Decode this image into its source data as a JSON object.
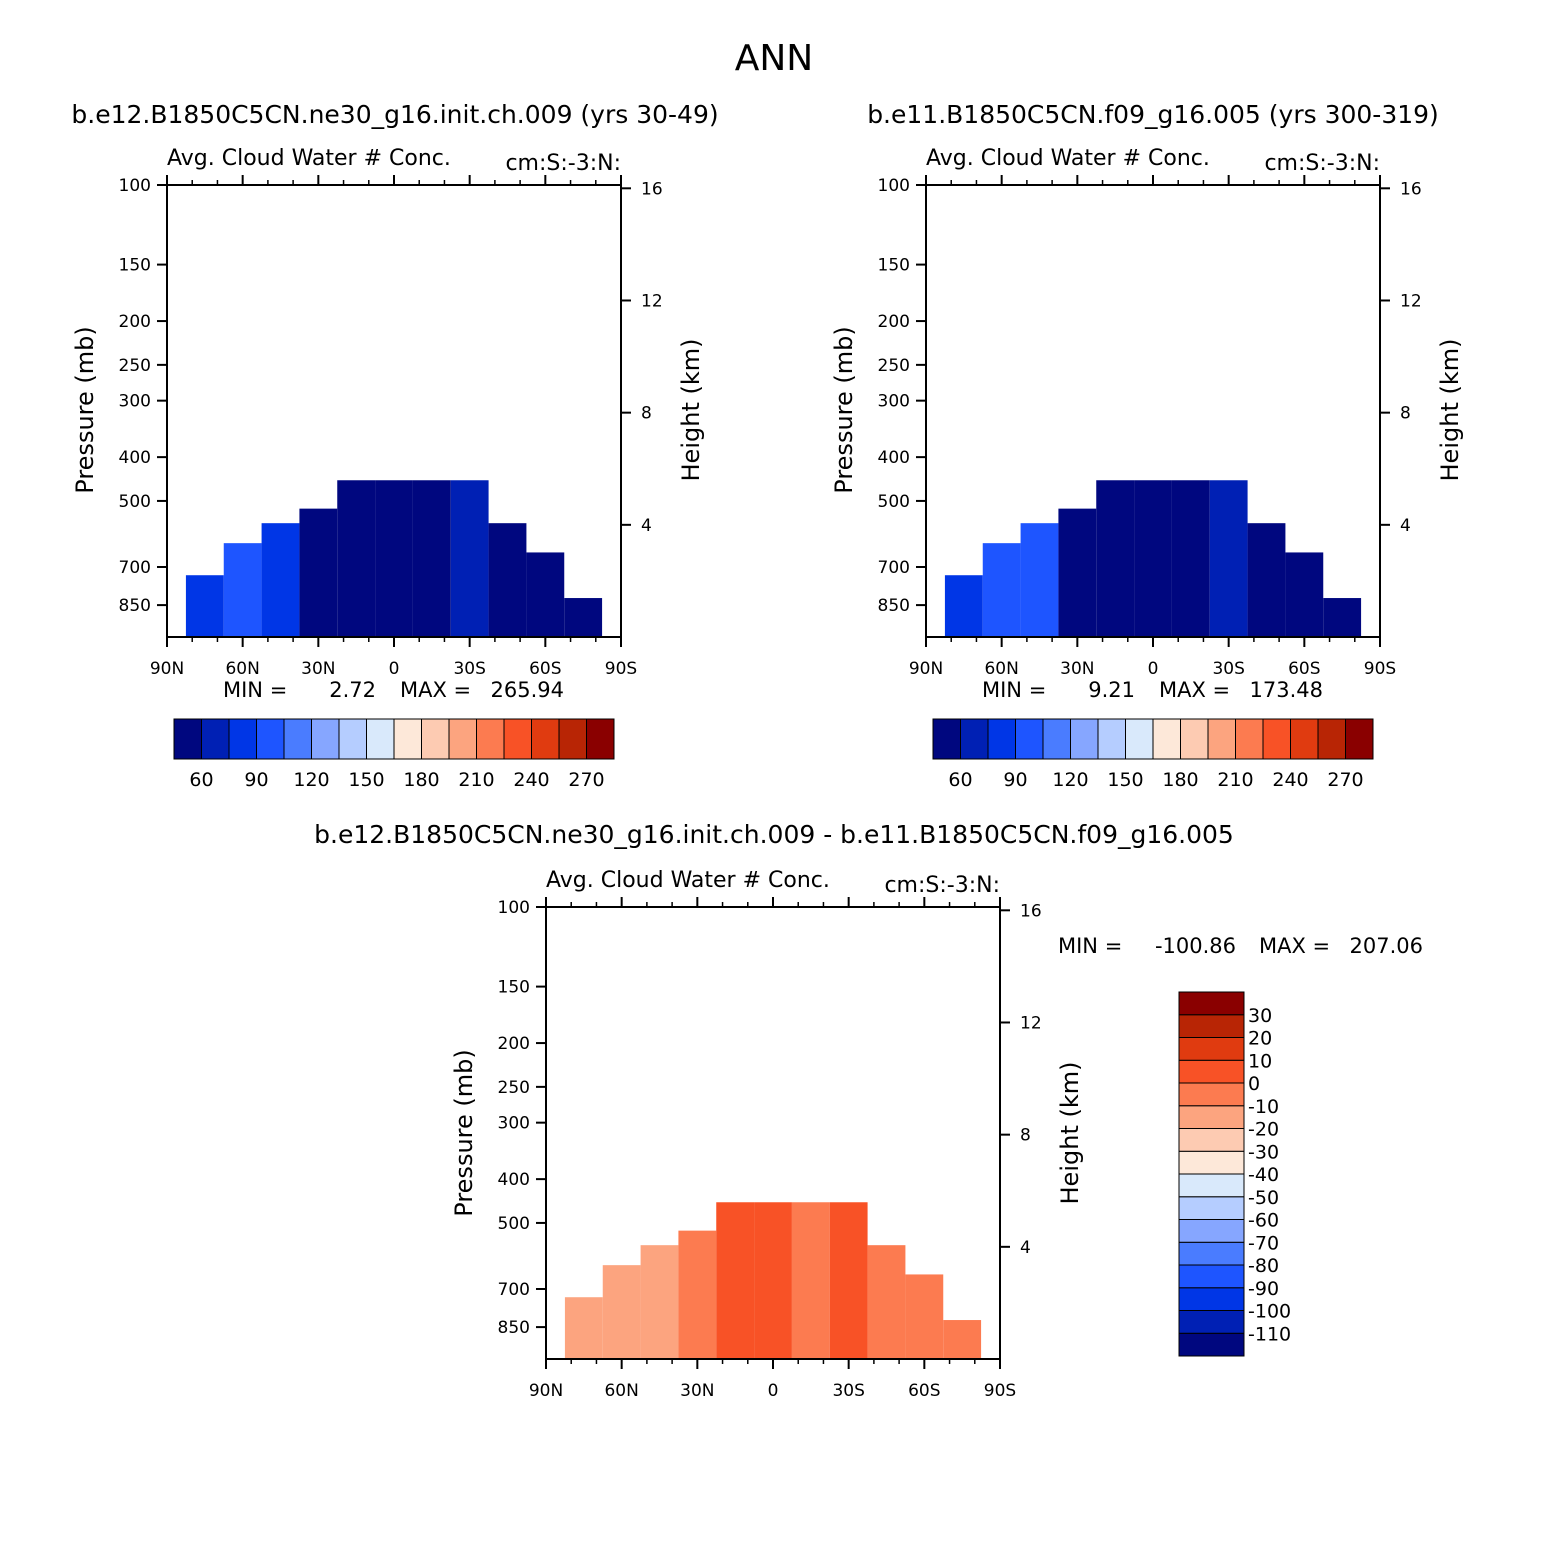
{
  "figure": {
    "title": "ANN",
    "diff_title": "b.e12.B1850C5CN.ne30_g16.init.ch.009 - b.e11.B1850C5CN.f09_g16.005"
  },
  "chart_data": [
    {
      "type": "contour",
      "case_title": "b.e12.B1850C5CN.ne30_g16.init.ch.009 (yrs 30-49)",
      "title_left": "Avg. Cloud Water # Conc.",
      "title_right": "cm:S:-3:N:",
      "xlabel": "",
      "ylabel": "Pressure (mb)",
      "ylabel_right": "Height (km)",
      "x_ticks": [
        "90N",
        "60N",
        "30N",
        "0",
        "30S",
        "60S",
        "90S"
      ],
      "y_ticks": [
        "100",
        "150",
        "200",
        "250",
        "300",
        "400",
        "500",
        "700",
        "850"
      ],
      "y_right_ticks": [
        "16",
        "12",
        "8",
        "4"
      ],
      "ylim": [
        100,
        1000
      ],
      "min_label": "MIN =",
      "min_value": "2.72",
      "max_label": "MAX =",
      "max_value": "265.94",
      "colorbar_labels": [
        "60",
        "90",
        "120",
        "150",
        "180",
        "210",
        "240",
        "270"
      ],
      "field": {
        "lat": [
          90,
          75,
          60,
          45,
          30,
          15,
          0,
          -15,
          -30,
          -45,
          -60,
          -75,
          -90
        ],
        "top_pressure": [
          1000,
          730,
          620,
          560,
          520,
          450,
          450,
          450,
          450,
          560,
          650,
          820,
          1000
        ],
        "mean_value": [
          40,
          60,
          75,
          70,
          35,
          30,
          30,
          35,
          50,
          35,
          30,
          30,
          30
        ]
      }
    },
    {
      "type": "contour",
      "case_title": "b.e11.B1850C5CN.f09_g16.005 (yrs 300-319)",
      "title_left": "Avg. Cloud Water # Conc.",
      "title_right": "cm:S:-3:N:",
      "xlabel": "",
      "ylabel": "Pressure (mb)",
      "ylabel_right": "Height (km)",
      "x_ticks": [
        "90N",
        "60N",
        "30N",
        "0",
        "30S",
        "60S",
        "90S"
      ],
      "y_ticks": [
        "100",
        "150",
        "200",
        "250",
        "300",
        "400",
        "500",
        "700",
        "850"
      ],
      "y_right_ticks": [
        "16",
        "12",
        "8",
        "4"
      ],
      "ylim": [
        100,
        1000
      ],
      "min_label": "MIN =",
      "min_value": "9.21",
      "max_label": "MAX =",
      "max_value": "173.48",
      "colorbar_labels": [
        "60",
        "90",
        "120",
        "150",
        "180",
        "210",
        "240",
        "270"
      ],
      "field": {
        "lat": [
          90,
          75,
          60,
          45,
          30,
          15,
          0,
          -15,
          -30,
          -45,
          -60,
          -75,
          -90
        ],
        "top_pressure": [
          1000,
          730,
          620,
          560,
          520,
          450,
          450,
          450,
          450,
          560,
          650,
          820,
          1000
        ],
        "mean_value": [
          40,
          70,
          85,
          80,
          40,
          30,
          30,
          35,
          55,
          35,
          30,
          30,
          30
        ]
      }
    },
    {
      "type": "contour",
      "case_title": "",
      "title_left": "Avg. Cloud Water # Conc.",
      "title_right": "cm:S:-3:N:",
      "xlabel": "",
      "ylabel": "Pressure (mb)",
      "ylabel_right": "Height (km)",
      "x_ticks": [
        "90N",
        "60N",
        "30N",
        "0",
        "30S",
        "60S",
        "90S"
      ],
      "y_ticks": [
        "100",
        "150",
        "200",
        "250",
        "300",
        "400",
        "500",
        "700",
        "850"
      ],
      "y_right_ticks": [
        "16",
        "12",
        "8",
        "4"
      ],
      "ylim": [
        100,
        1000
      ],
      "min_label": "MIN =",
      "min_value": "-100.86",
      "max_label": "MAX =",
      "max_value": "207.06",
      "colorbar_labels": [
        "30",
        "20",
        "10",
        "0",
        "-10",
        "-20",
        "-30",
        "-40",
        "-50",
        "-60",
        "-70",
        "-80",
        "-90",
        "-100",
        "-110"
      ],
      "field": {
        "lat": [
          90,
          75,
          60,
          45,
          30,
          15,
          0,
          -15,
          -30,
          -45,
          -60,
          -75,
          -90
        ],
        "top_pressure": [
          1000,
          730,
          620,
          560,
          520,
          450,
          450,
          450,
          450,
          560,
          650,
          820,
          1000
        ],
        "mean_value": [
          -5,
          -10,
          -15,
          -10,
          0,
          5,
          5,
          0,
          5,
          -5,
          -5,
          -5,
          -5
        ]
      }
    }
  ],
  "colors": {
    "seq": [
      "#00077f",
      "#0020b4",
      "#0036e6",
      "#1e55ff",
      "#4a7cff",
      "#86a6ff",
      "#b5cdff",
      "#d9e9fb",
      "#fde8d9",
      "#fdcbb2",
      "#fca47f",
      "#fc7b50",
      "#f85226",
      "#e03b10",
      "#b82505",
      "#8a0000"
    ],
    "diff": [
      "#00077f",
      "#0020b4",
      "#0036e6",
      "#1e55ff",
      "#4a7cff",
      "#86a6ff",
      "#b5cdff",
      "#d9e9fb",
      "#fde8d9",
      "#fdcbb2",
      "#fca47f",
      "#fc7b50",
      "#f85226",
      "#e03b10",
      "#b82505",
      "#8a0000"
    ]
  }
}
